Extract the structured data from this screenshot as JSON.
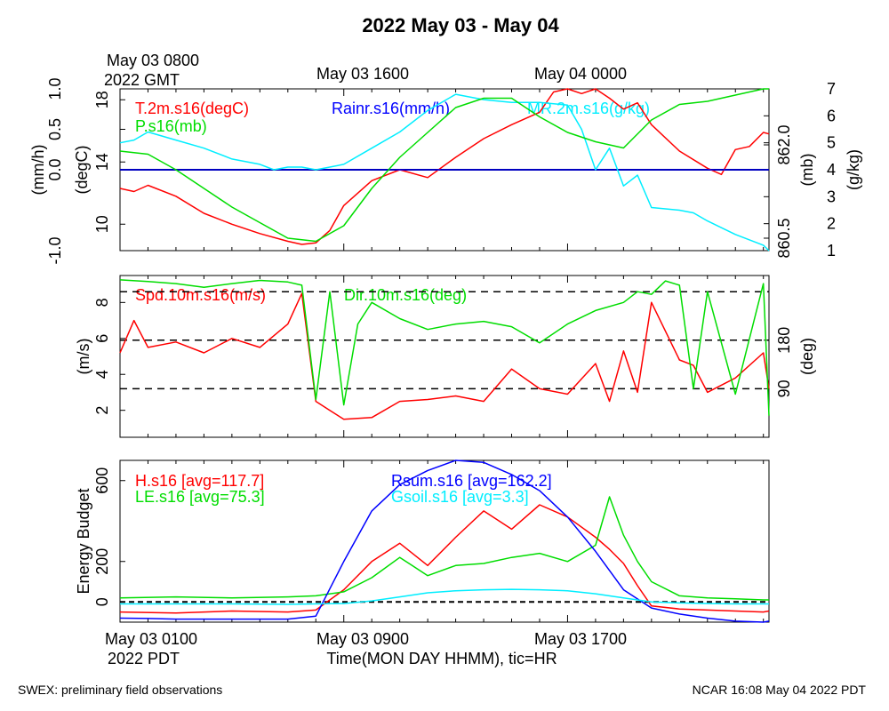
{
  "title": "2022 May 03 - May 04",
  "top_date_labels": {
    "start_line1": "May 03 0800",
    "start_line2": "2022 GMT",
    "mid1": "May 03 1600",
    "mid2": "May 04 0000"
  },
  "bottom_date_labels": {
    "start_line1": "May 03 0100",
    "start_line2": "2022 PDT",
    "mid1": "May 03 0900",
    "mid2": "May 03 1700"
  },
  "xlabel": "Time(MON DAY HHMM), tic=HR",
  "footer_left": "SWEX: preliminary field observations",
  "footer_right": "NCAR 16:08 May 04 2022 PDT",
  "colors": {
    "red": "#ff0000",
    "green": "#00dd00",
    "blue": "#0000ff",
    "cyan": "#00eeff"
  },
  "chart_data": [
    {
      "type": "line",
      "panel": "top",
      "x_hours_pdt": [
        1,
        24.2
      ],
      "axes": {
        "left_outer": {
          "label": "(mm/h)",
          "ticks": [
            "-1.0",
            "0.0",
            "0.5",
            "1.0"
          ],
          "ylim": [
            -1,
            1
          ]
        },
        "left_inner": {
          "label": "(degC)",
          "ticks": [
            "10",
            "14",
            "18"
          ],
          "ylim": [
            8.3,
            18.7
          ]
        },
        "right_inner": {
          "label": "(mb)",
          "ticks": [
            "860.5",
            "862.0"
          ],
          "ylim": [
            860.3,
            862.9
          ]
        },
        "right_outer": {
          "label": "(g/kg)",
          "ticks": [
            "1",
            "2",
            "3",
            "4",
            "5",
            "6",
            "7"
          ],
          "ylim": [
            1,
            7
          ]
        }
      },
      "series": [
        {
          "name": "T.2m.s16(degC)",
          "color": "red",
          "axis": "left_inner",
          "x": [
            1,
            1.5,
            2,
            3,
            4,
            5,
            6,
            7,
            7.5,
            8,
            8.5,
            9,
            10,
            11,
            12,
            13,
            14,
            15,
            16,
            16.5,
            17,
            17.5,
            18,
            18.5,
            19,
            19.5,
            20,
            21,
            22,
            22.5,
            23,
            23.5,
            24,
            24.2
          ],
          "y": [
            12.3,
            12.1,
            12.5,
            11.8,
            10.7,
            10.0,
            9.4,
            8.9,
            8.7,
            8.8,
            9.6,
            11.2,
            12.8,
            13.5,
            13.0,
            14.3,
            15.5,
            16.4,
            17.2,
            18.5,
            18.9,
            18.4,
            18.8,
            18.1,
            17.4,
            17.8,
            16.4,
            14.7,
            13.6,
            13.2,
            14.8,
            15.0,
            15.9,
            15.8
          ]
        },
        {
          "name": "Rainr.s16(mm/h)",
          "color": "blue",
          "axis": "left_outer",
          "x": [
            1,
            24.2
          ],
          "y": [
            0,
            0
          ]
        },
        {
          "name": "MR.2m.s16(g/kg)",
          "color": "cyan",
          "axis": "right_outer",
          "x": [
            1,
            1.5,
            2,
            3,
            4,
            5,
            6,
            6.5,
            7,
            7.5,
            8,
            8.5,
            9,
            10,
            11,
            12,
            13,
            14,
            15,
            16,
            17,
            17.5,
            18,
            18.5,
            19,
            19.5,
            20,
            21,
            21.5,
            22,
            23,
            24,
            24.2
          ],
          "y": [
            5.0,
            5.1,
            5.4,
            5.1,
            4.8,
            4.4,
            4.2,
            4.0,
            4.1,
            4.1,
            4.0,
            4.1,
            4.2,
            4.8,
            5.4,
            6.2,
            6.8,
            6.6,
            6.5,
            6.5,
            6.4,
            5.5,
            4.0,
            4.8,
            3.4,
            3.8,
            2.6,
            2.5,
            2.4,
            2.1,
            1.6,
            1.2,
            1.0
          ]
        },
        {
          "name": "P.s16(mb)",
          "color": "green",
          "axis": "right_inner",
          "x": [
            1,
            2,
            3,
            4,
            5,
            6,
            7,
            8,
            9,
            10,
            11,
            12,
            13,
            14,
            15,
            16,
            17,
            18,
            19,
            20,
            21,
            22,
            23,
            24,
            24.2
          ],
          "y": [
            861.9,
            861.85,
            861.6,
            861.3,
            861.0,
            860.75,
            860.5,
            860.45,
            860.7,
            861.3,
            861.8,
            862.2,
            862.6,
            862.75,
            862.75,
            862.45,
            862.2,
            862.05,
            861.95,
            862.4,
            862.65,
            862.7,
            862.8,
            862.9,
            862.9
          ]
        }
      ]
    },
    {
      "type": "line",
      "panel": "middle",
      "x_hours_pdt": [
        1,
        24.2
      ],
      "axes": {
        "left": {
          "label": "(m/s)",
          "ticks": [
            "2",
            "4",
            "6",
            "8"
          ],
          "ylim": [
            0.5,
            9.5
          ]
        },
        "right": {
          "label": "(deg)",
          "ticks": [
            "90",
            "180"
          ],
          "ylim": [
            0,
            300
          ]
        }
      },
      "reference_lines_deg": [
        90,
        180,
        270
      ],
      "series": [
        {
          "name": "Spd.10m.s16(m/s)",
          "color": "red",
          "axis": "left",
          "x": [
            1,
            1.5,
            2,
            3,
            4,
            5,
            6,
            7,
            7.5,
            8,
            8.5,
            9,
            10,
            11,
            12,
            13,
            14,
            15,
            16,
            17,
            18,
            18.5,
            19,
            19.5,
            20,
            21,
            21.5,
            22,
            23,
            24,
            24.2
          ],
          "y": [
            5.2,
            7.0,
            5.5,
            5.8,
            5.2,
            6.0,
            5.5,
            6.8,
            8.5,
            2.5,
            2.0,
            1.5,
            1.6,
            2.5,
            2.6,
            2.8,
            2.5,
            4.3,
            3.2,
            2.9,
            4.6,
            2.5,
            5.3,
            3.0,
            8.0,
            4.8,
            4.5,
            3.0,
            3.8,
            5.2,
            3.2
          ]
        },
        {
          "name": "Dir.10m.s16(deg)",
          "color": "green",
          "axis": "right",
          "x": [
            1,
            2,
            3,
            4,
            5,
            6,
            7,
            7.5,
            8,
            8.5,
            9,
            9.5,
            10,
            11,
            12,
            13,
            14,
            15,
            16,
            17,
            18,
            19,
            19.5,
            20,
            20.5,
            21,
            21.5,
            22,
            23,
            24,
            24.2
          ],
          "y": [
            292,
            289,
            285,
            278,
            285,
            291,
            288,
            282,
            70,
            270,
            60,
            210,
            250,
            220,
            200,
            210,
            215,
            205,
            175,
            210,
            235,
            250,
            270,
            265,
            290,
            282,
            90,
            270,
            80,
            285,
            40
          ]
        }
      ]
    },
    {
      "type": "line",
      "panel": "bottom",
      "x_hours_pdt": [
        1,
        24.2
      ],
      "axes": {
        "left": {
          "label": "Energy Budget",
          "ticks": [
            "0",
            "200",
            "600"
          ],
          "ylim": [
            -100,
            700
          ]
        }
      },
      "reference_lines": [
        0
      ],
      "series": [
        {
          "name": "H.s16 [avg=117.7]",
          "color": "red",
          "x": [
            1,
            3,
            5,
            7,
            8,
            9,
            10,
            11,
            12,
            13,
            14,
            15,
            16,
            17,
            18,
            18.5,
            19,
            19.5,
            20,
            21,
            22,
            23,
            24,
            24.2
          ],
          "y": [
            -50,
            -55,
            -45,
            -50,
            -40,
            60,
            200,
            290,
            180,
            320,
            450,
            360,
            480,
            420,
            320,
            260,
            190,
            80,
            -20,
            -35,
            -40,
            -45,
            -50,
            -45
          ]
        },
        {
          "name": "LE.s16 [avg=75.3]",
          "color": "green",
          "x": [
            1,
            3,
            5,
            7,
            8,
            9,
            10,
            11,
            12,
            13,
            14,
            15,
            16,
            17,
            18,
            18.5,
            19,
            19.5,
            20,
            21,
            22,
            23,
            24,
            24.2
          ],
          "y": [
            20,
            25,
            20,
            25,
            30,
            50,
            120,
            220,
            130,
            180,
            190,
            220,
            240,
            200,
            280,
            520,
            330,
            200,
            100,
            30,
            20,
            15,
            10,
            10
          ]
        },
        {
          "name": "Rsum.s16 [avg=162.2]",
          "color": "blue",
          "x": [
            1,
            2,
            3,
            4,
            5,
            6,
            7,
            8,
            9,
            10,
            11,
            12,
            13,
            14,
            15,
            16,
            17,
            18,
            19,
            20,
            21,
            22,
            23,
            24,
            24.2
          ],
          "y": [
            -80,
            -82,
            -85,
            -85,
            -85,
            -85,
            -85,
            -70,
            200,
            450,
            580,
            650,
            700,
            690,
            630,
            550,
            420,
            250,
            60,
            -30,
            -60,
            -80,
            -95,
            -100,
            -95
          ]
        },
        {
          "name": "Gsoil.s16 [avg=3.3]",
          "color": "cyan",
          "x": [
            1,
            3,
            5,
            7,
            8,
            9,
            10,
            11,
            12,
            13,
            14,
            15,
            16,
            17,
            18,
            19,
            20,
            21,
            22,
            23,
            24,
            24.2
          ],
          "y": [
            -10,
            -10,
            -10,
            -12,
            -10,
            -8,
            5,
            25,
            45,
            55,
            60,
            62,
            60,
            55,
            40,
            20,
            0,
            -5,
            -8,
            -10,
            -10,
            -10
          ]
        }
      ]
    }
  ]
}
